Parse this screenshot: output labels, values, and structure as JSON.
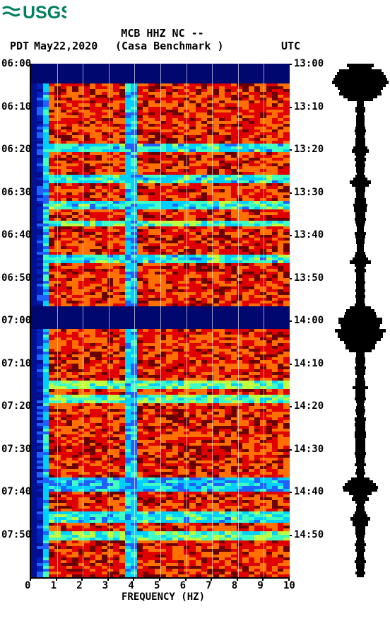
{
  "logo": {
    "text": "USGS",
    "color": "#008060"
  },
  "header": {
    "station_code": "MCB HHZ NC --",
    "station_name": "(Casa Benchmark )",
    "left_tz": "PDT",
    "right_tz": "UTC",
    "date": "May22,2020"
  },
  "spectrogram": {
    "type": "spectrogram",
    "x_axis_label": "FREQUENCY (HZ)",
    "x_ticks": [
      0,
      1,
      2,
      3,
      4,
      5,
      6,
      7,
      8,
      9,
      10
    ],
    "y_left_ticks": [
      "06:00",
      "06:10",
      "06:20",
      "06:30",
      "06:40",
      "06:50",
      "07:00",
      "07:10",
      "07:20",
      "07:30",
      "07:40",
      "07:50"
    ],
    "y_right_ticks": [
      "13:00",
      "13:10",
      "13:20",
      "13:30",
      "13:40",
      "13:50",
      "14:00",
      "14:10",
      "14:20",
      "14:30",
      "14:40",
      "14:50"
    ],
    "colormap": {
      "levels": [
        "#6a0000",
        "#e00000",
        "#ff7000",
        "#ffd000",
        "#c0ff40",
        "#40ffc0",
        "#00d0ff",
        "#2060ff",
        "#0020c0",
        "#001090",
        "#000870"
      ]
    },
    "background_color": "#0020c0",
    "grid_freq_lines": [
      1,
      2,
      3,
      4,
      5,
      6,
      7,
      8,
      9
    ],
    "persistent_lines": [
      {
        "freq": 0.25,
        "color": "#ffd000",
        "width": 6
      },
      {
        "freq": 0.5,
        "color": "#40ffc0",
        "width": 4
      },
      {
        "freq": 3.75,
        "color": "#40ffc0",
        "width": 3
      }
    ],
    "events": [
      {
        "t0": 0,
        "t1": 6,
        "intensity": 10
      },
      {
        "t0": 28,
        "t1": 30,
        "intensity": 6
      },
      {
        "t0": 39,
        "t1": 41,
        "intensity": 6
      },
      {
        "t0": 48,
        "t1": 50,
        "intensity": 6
      },
      {
        "t0": 55,
        "t1": 56,
        "intensity": 5
      },
      {
        "t0": 67,
        "t1": 69,
        "intensity": 6
      },
      {
        "t0": 85,
        "t1": 89,
        "intensity": 10
      },
      {
        "t0": 89,
        "t1": 92,
        "intensity": 10
      },
      {
        "t0": 111,
        "t1": 113,
        "intensity": 5
      },
      {
        "t0": 116,
        "t1": 118,
        "intensity": 5
      },
      {
        "t0": 145,
        "t1": 149,
        "intensity": 7
      },
      {
        "t0": 157,
        "t1": 160,
        "intensity": 6
      },
      {
        "t0": 164,
        "t1": 166,
        "intensity": 5
      }
    ],
    "time_rows": 180
  },
  "waveform": {
    "color": "#000000",
    "baseline_amp": 5,
    "events": [
      {
        "t0": 0,
        "t1": 12,
        "amp": 40
      },
      {
        "t0": 28,
        "t1": 32,
        "amp": 12
      },
      {
        "t0": 39,
        "t1": 43,
        "amp": 15
      },
      {
        "t0": 48,
        "t1": 52,
        "amp": 10
      },
      {
        "t0": 67,
        "t1": 70,
        "amp": 14
      },
      {
        "t0": 85,
        "t1": 100,
        "amp": 32
      },
      {
        "t0": 111,
        "t1": 114,
        "amp": 8
      },
      {
        "t0": 145,
        "t1": 152,
        "amp": 22
      },
      {
        "t0": 157,
        "t1": 162,
        "amp": 12
      }
    ]
  }
}
